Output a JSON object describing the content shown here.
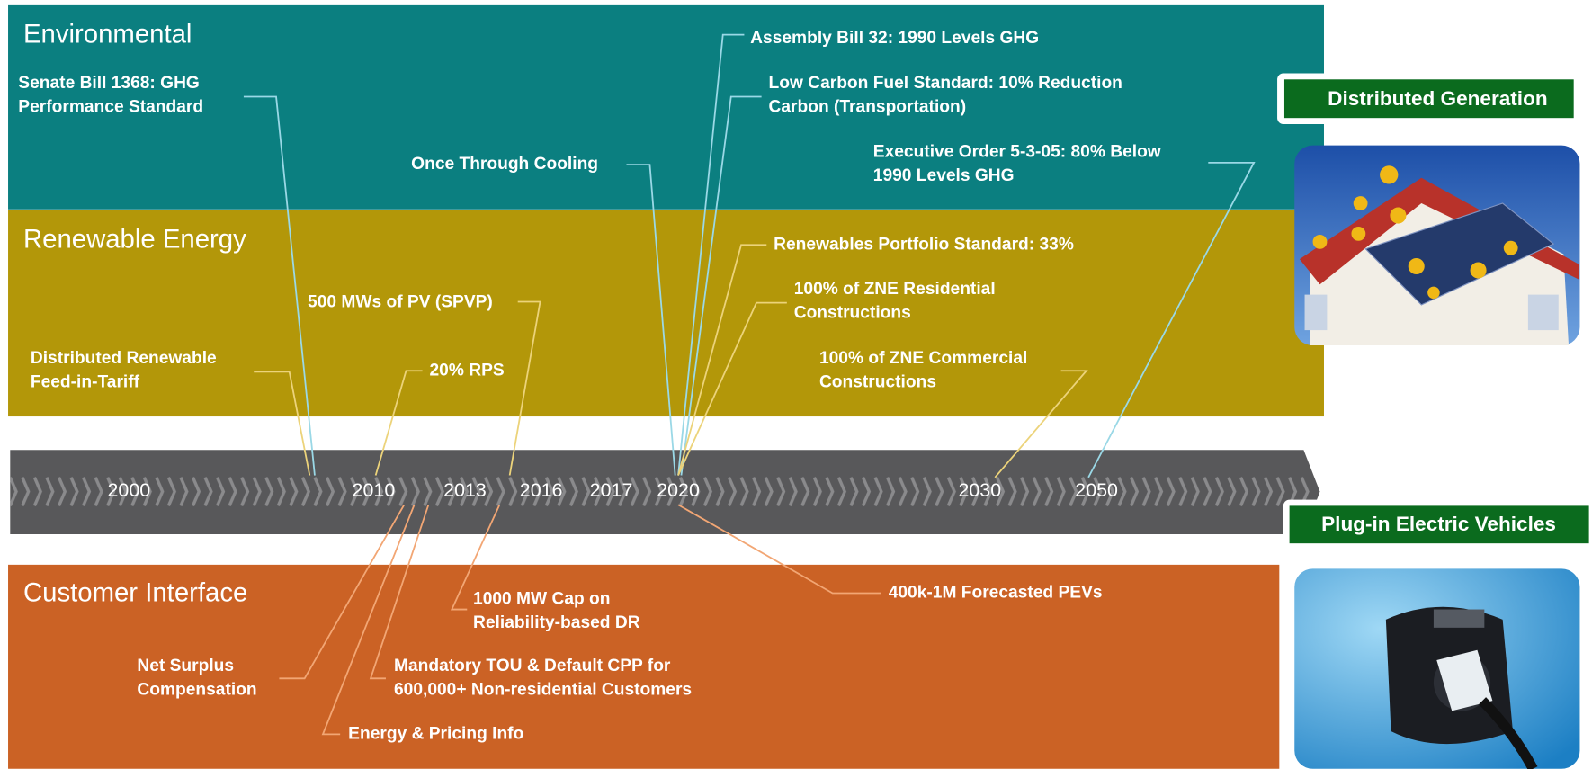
{
  "sections": [
    {
      "title": "Environmental"
    },
    {
      "title": "Renewable Energy"
    },
    {
      "title": "Customer Interface"
    }
  ],
  "timeline": {
    "years": [
      "2000",
      "2010",
      "2013",
      "2016",
      "2017",
      "2020",
      "2030",
      "2050"
    ]
  },
  "milestones": [
    {
      "lines": [
        "Senate Bill 1368: GHG",
        "Performance Standard"
      ]
    },
    {
      "lines": [
        "Once Through Cooling"
      ]
    },
    {
      "lines": [
        "Assembly Bill 32: 1990 Levels GHG"
      ]
    },
    {
      "lines": [
        "Low Carbon Fuel Standard: 10% Reduction",
        "Carbon (Transportation)"
      ]
    },
    {
      "lines": [
        "Executive Order 5-3-05: 80% Below",
        "1990 Levels GHG"
      ]
    },
    {
      "lines": [
        "Distributed Renewable",
        "Feed-in-Tariff"
      ]
    },
    {
      "lines": [
        "500 MWs of PV (SPVP)"
      ]
    },
    {
      "lines": [
        "20% RPS"
      ]
    },
    {
      "lines": [
        "Renewables Portfolio Standard: 33%"
      ]
    },
    {
      "lines": [
        "100% of ZNE Residential",
        "Constructions"
      ]
    },
    {
      "lines": [
        "100% of ZNE Commercial",
        "Constructions"
      ]
    },
    {
      "lines": [
        "1000 MW Cap on",
        "Reliability-based DR"
      ]
    },
    {
      "lines": [
        "400k-1M Forecasted PEVs"
      ]
    },
    {
      "lines": [
        "Net Surplus",
        "Compensation"
      ]
    },
    {
      "lines": [
        "Mandatory TOU & Default CPP for",
        "600,000+ Non-residential Customers"
      ]
    },
    {
      "lines": [
        "Energy & Pricing Info"
      ]
    }
  ],
  "panels": [
    {
      "title": "Distributed Generation"
    },
    {
      "title": "Plug-in Electric Vehicles"
    }
  ]
}
